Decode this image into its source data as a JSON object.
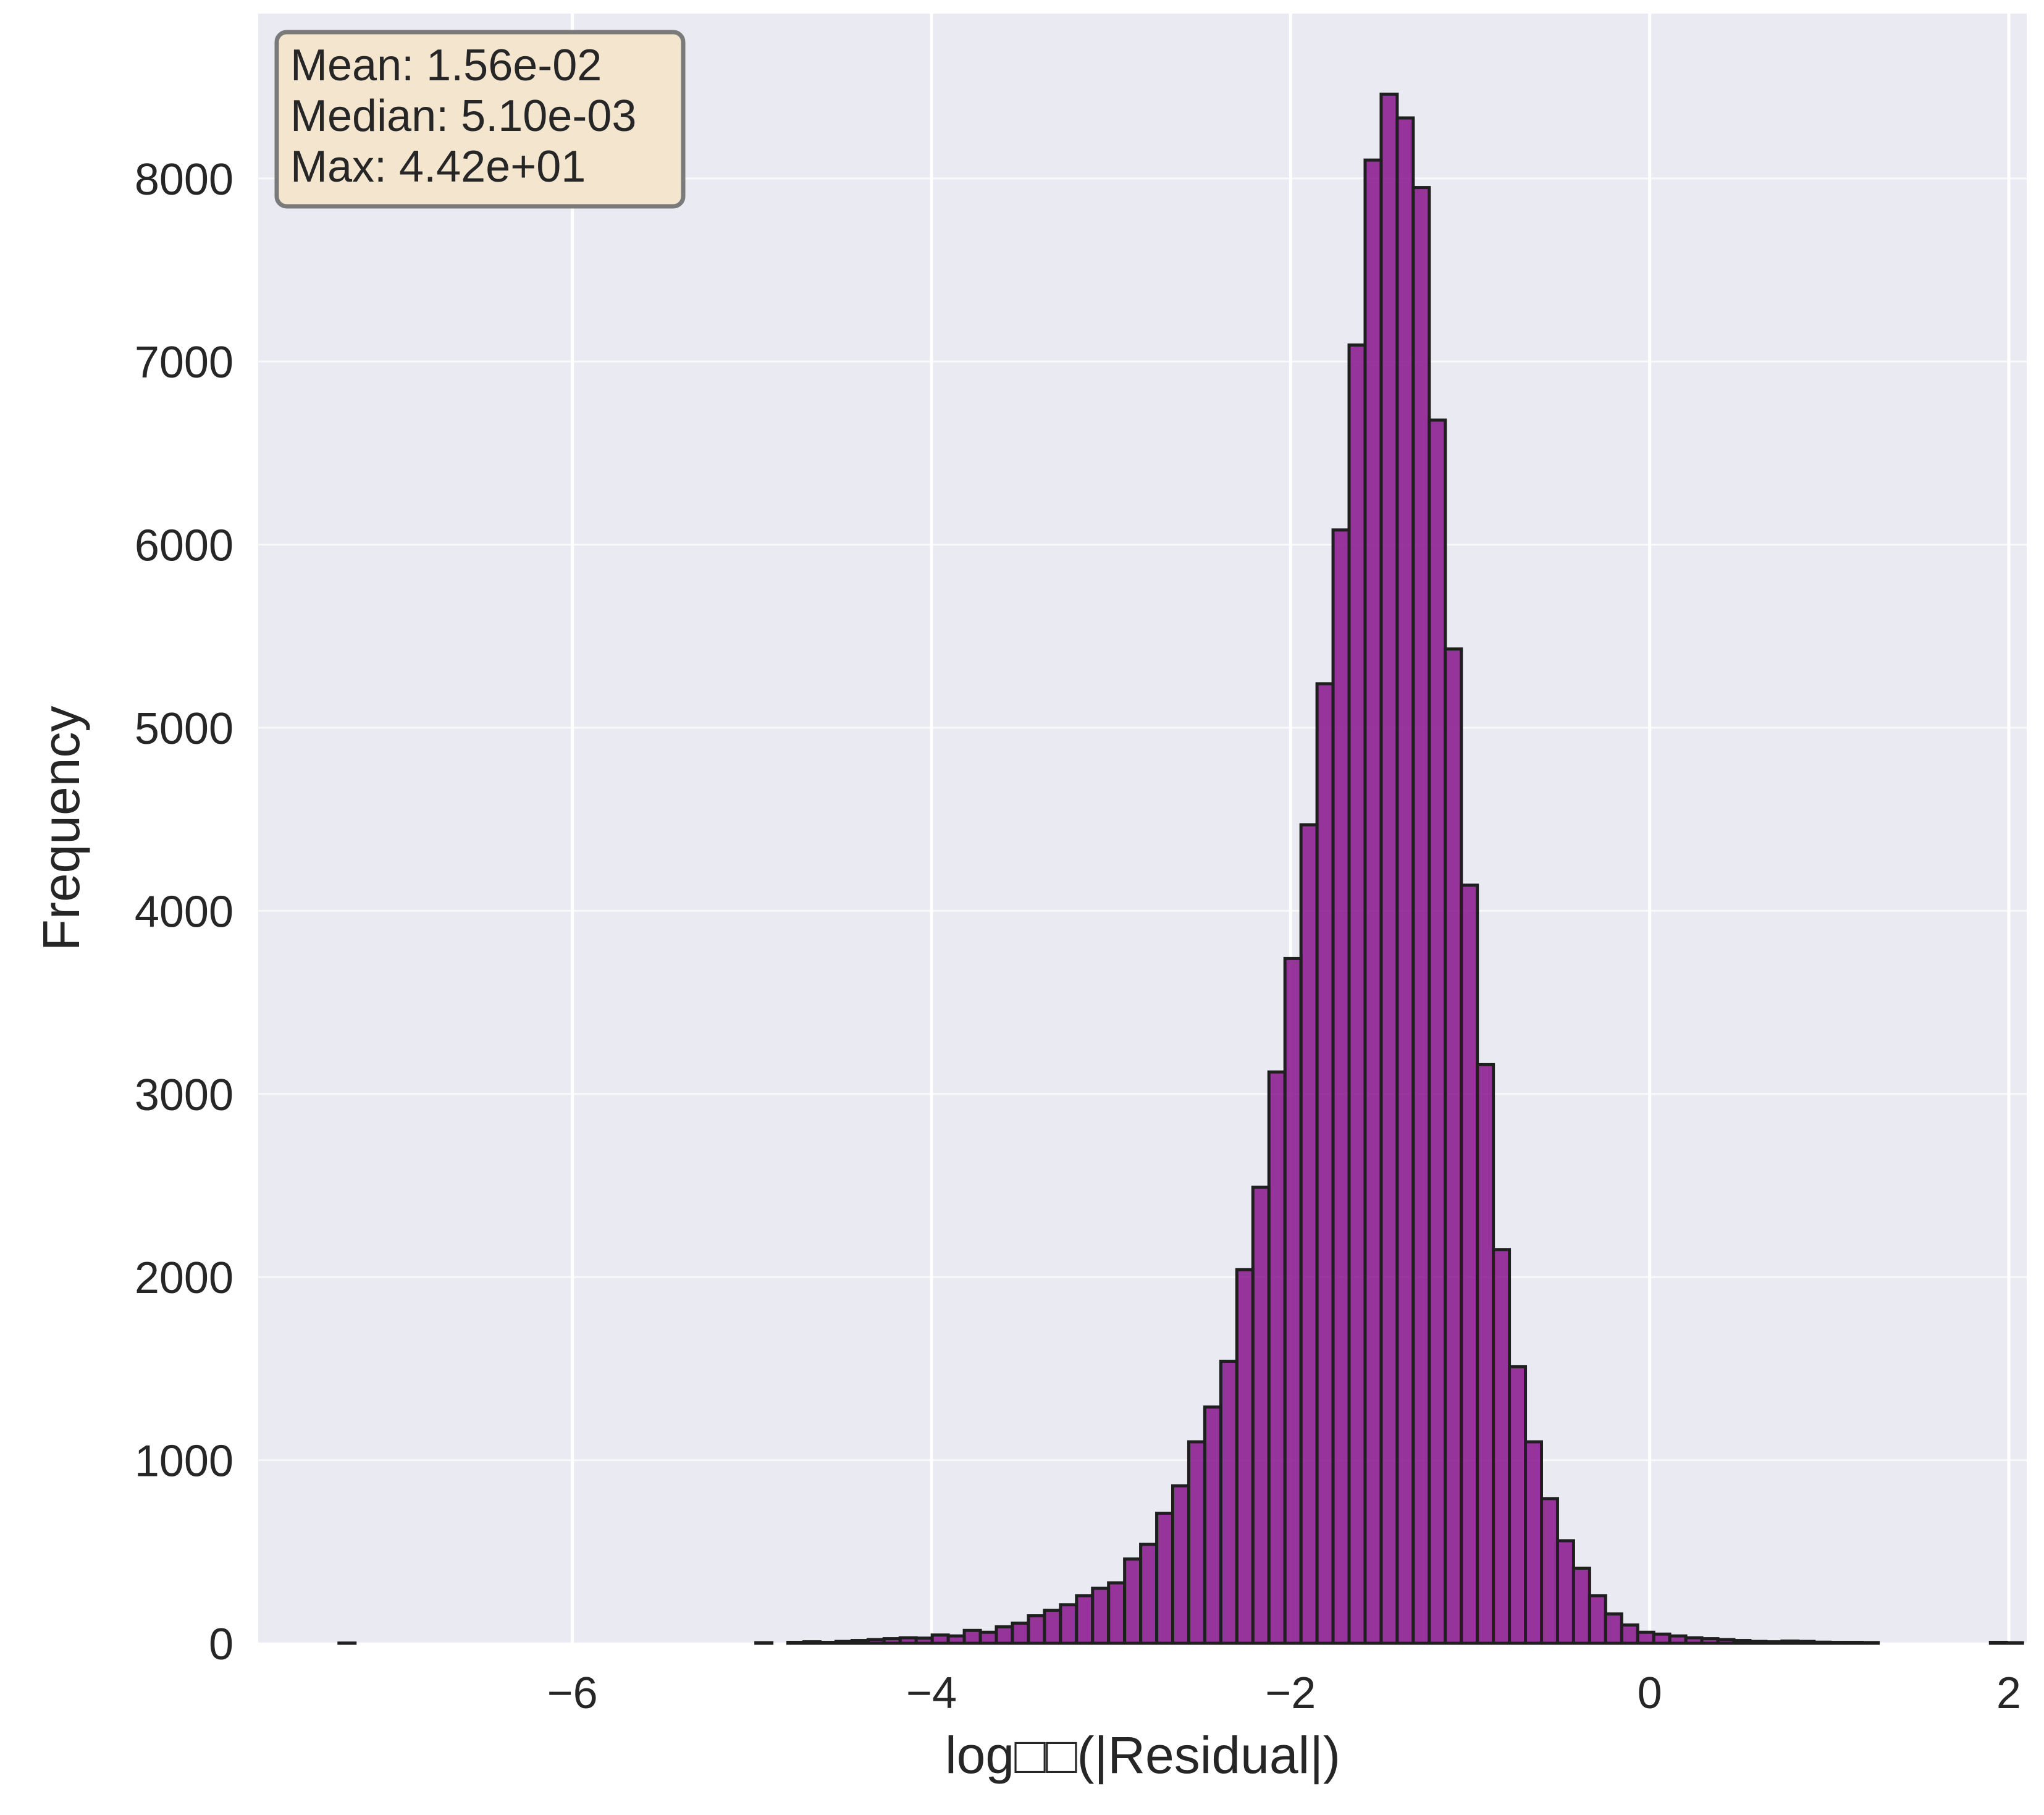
{
  "chart_data": {
    "type": "bar",
    "subtype": "histogram",
    "title": "",
    "xlabel": "log□□(|Residual|)",
    "ylabel": "Frequency",
    "xlim": [
      -7.75,
      2.1
    ],
    "ylim": [
      0,
      8900
    ],
    "xticks": [
      -6,
      -4,
      -2,
      0,
      2
    ],
    "xtick_labels": [
      "−6",
      "−4",
      "−2",
      "0",
      "2"
    ],
    "yticks": [
      0,
      1000,
      2000,
      3000,
      4000,
      5000,
      6000,
      7000,
      8000
    ],
    "ytick_labels": [
      "0",
      "1000",
      "2000",
      "3000",
      "4000",
      "5000",
      "6000",
      "7000",
      "8000"
    ],
    "grid": true,
    "bin_range": [
      -7.3,
      1.63
    ],
    "bin_width": 0.0893,
    "values": [
      1,
      0,
      0,
      0,
      0,
      0,
      0,
      0,
      0,
      0,
      0,
      0,
      0,
      0,
      0,
      0,
      0,
      0,
      0,
      0,
      0,
      0,
      0,
      0,
      0,
      0,
      3,
      0,
      5,
      8,
      5,
      10,
      15,
      20,
      25,
      30,
      28,
      45,
      40,
      70,
      60,
      90,
      110,
      150,
      180,
      210,
      260,
      300,
      330,
      460,
      540,
      710,
      860,
      1100,
      1290,
      1540,
      2040,
      2490,
      3120,
      3740,
      4470,
      5240,
      6080,
      7090,
      8100,
      8460,
      8330,
      7950,
      6680,
      5430,
      4140,
      3160,
      2150,
      1510,
      1100,
      790,
      560,
      410,
      260,
      160,
      100,
      60,
      50,
      40,
      30,
      25,
      20,
      15,
      10,
      8,
      12,
      10,
      6,
      5,
      5,
      4,
      0,
      0,
      0,
      0,
      0,
      0,
      0,
      5,
      3,
      0,
      0,
      0,
      0,
      0,
      0
    ],
    "bar_color": "#8b1a8f",
    "bar_edge_color": "#1f1f1f",
    "background_color": "#eaeaf2",
    "grid_color": "#ffffff",
    "stats_box": {
      "lines": [
        "Mean: 1.56e-02",
        "Median: 5.10e-03",
        "Max: 4.42e+01"
      ],
      "placement": "top-left",
      "face_color": "#f4e5cf"
    }
  }
}
